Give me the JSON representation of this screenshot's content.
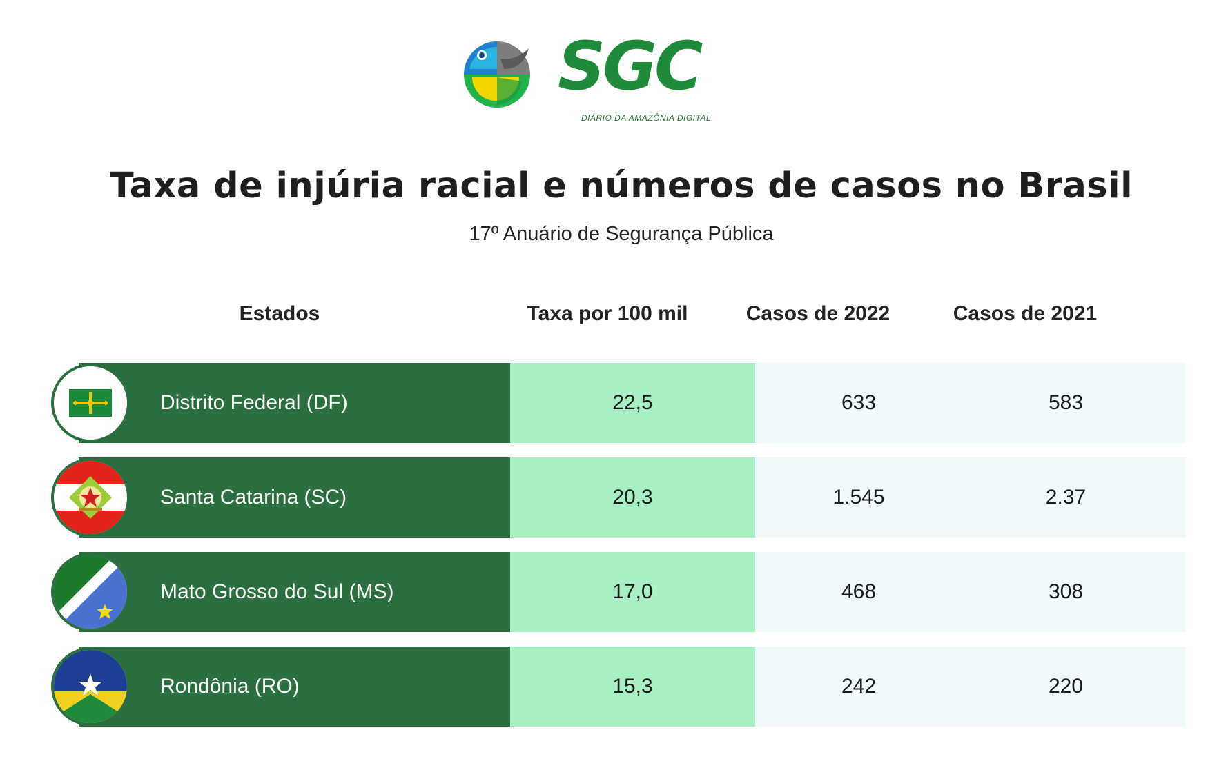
{
  "logo": {
    "text": "SGC",
    "tagline": "DIÁRIO DA AMAZÔNIA DIGITAL",
    "colors": {
      "blue": "#1f7fd0",
      "gray": "#8c8c8c",
      "yellow": "#f2d600",
      "green": "#22b24c",
      "brand_green": "#1f8a3a"
    }
  },
  "title": "Taxa de injúria racial e números de casos no Brasil",
  "subtitle": "17º Anuário de Segurança Pública",
  "table": {
    "headers": {
      "state": "Estados",
      "rate": "Taxa por 100 mil",
      "cases_2022": "Casos de 2022",
      "cases_2021": "Casos de 2021"
    },
    "rows": [
      {
        "state": "Distrito Federal (DF)",
        "flag_icon": "df-flag-icon",
        "rate": "22,5",
        "cases_2022": "633",
        "cases_2021": "583"
      },
      {
        "state": "Santa Catarina (SC)",
        "flag_icon": "sc-flag-icon",
        "rate": "20,3",
        "cases_2022": "1.545",
        "cases_2021": "2.37"
      },
      {
        "state": "Mato Grosso do Sul (MS)",
        "flag_icon": "ms-flag-icon",
        "rate": "17,0",
        "cases_2022": "468",
        "cases_2021": "308"
      },
      {
        "state": "Rondônia (RO)",
        "flag_icon": "ro-flag-icon",
        "rate": "15,3",
        "cases_2022": "242",
        "cases_2021": "220"
      }
    ]
  },
  "colors": {
    "state_cell": "#2b6e3f",
    "rate_cell": "#a8efc4",
    "cases_cell": "#f1fafb"
  }
}
